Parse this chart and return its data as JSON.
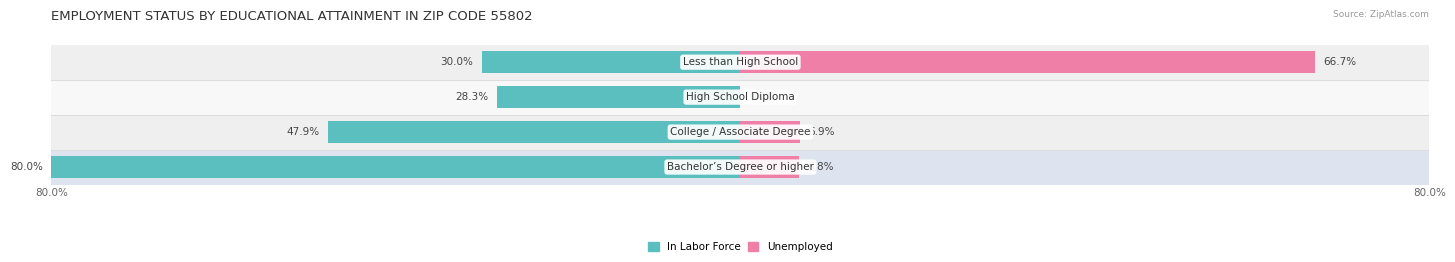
{
  "title": "EMPLOYMENT STATUS BY EDUCATIONAL ATTAINMENT IN ZIP CODE 55802",
  "source": "Source: ZipAtlas.com",
  "categories": [
    "Less than High School",
    "High School Diploma",
    "College / Associate Degree",
    "Bachelor’s Degree or higher"
  ],
  "labor_force": [
    30.0,
    28.3,
    47.9,
    80.0
  ],
  "unemployed": [
    66.7,
    0.0,
    6.9,
    6.8
  ],
  "labor_color": "#5BBFBF",
  "unemployed_color": "#F07FA8",
  "xlim_left": -80,
  "xlim_right": 80,
  "bar_height": 0.62,
  "row_colors": [
    "#efefef",
    "#f8f8f8",
    "#efefef",
    "#dde4ef"
  ],
  "title_fontsize": 9.5,
  "label_fontsize": 7.5,
  "axis_label_fontsize": 7.5,
  "source_fontsize": 6.5
}
